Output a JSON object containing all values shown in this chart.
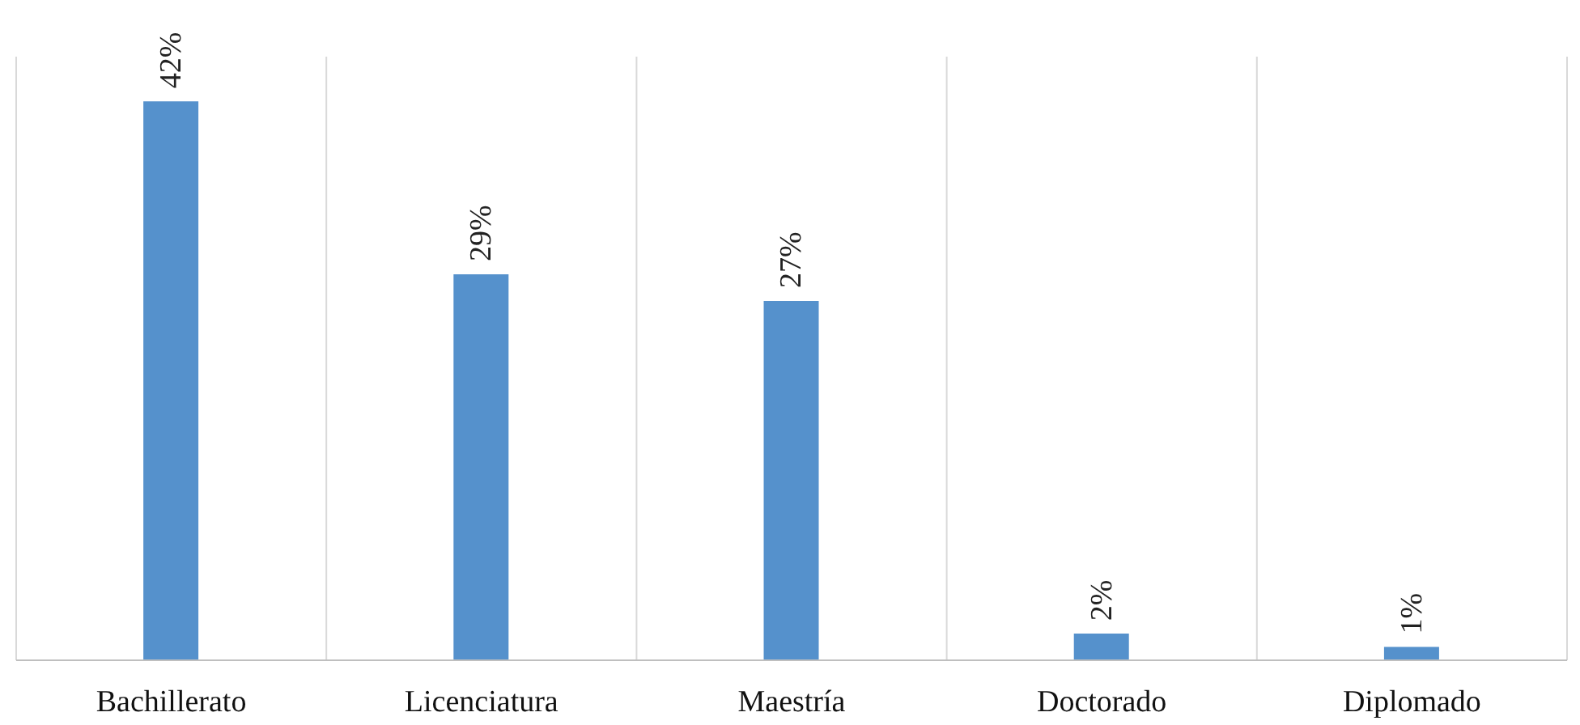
{
  "chart_data": {
    "type": "bar",
    "categories": [
      "Bachillerato",
      "Licenciatura",
      "Maestría",
      "Doctorado",
      "Diplomado"
    ],
    "values": [
      42,
      29,
      27,
      2,
      1
    ],
    "value_labels": [
      "42%",
      "29%",
      "27%",
      "2%",
      "1%"
    ],
    "color": "#5591cc",
    "grid": "x",
    "legend": false
  }
}
